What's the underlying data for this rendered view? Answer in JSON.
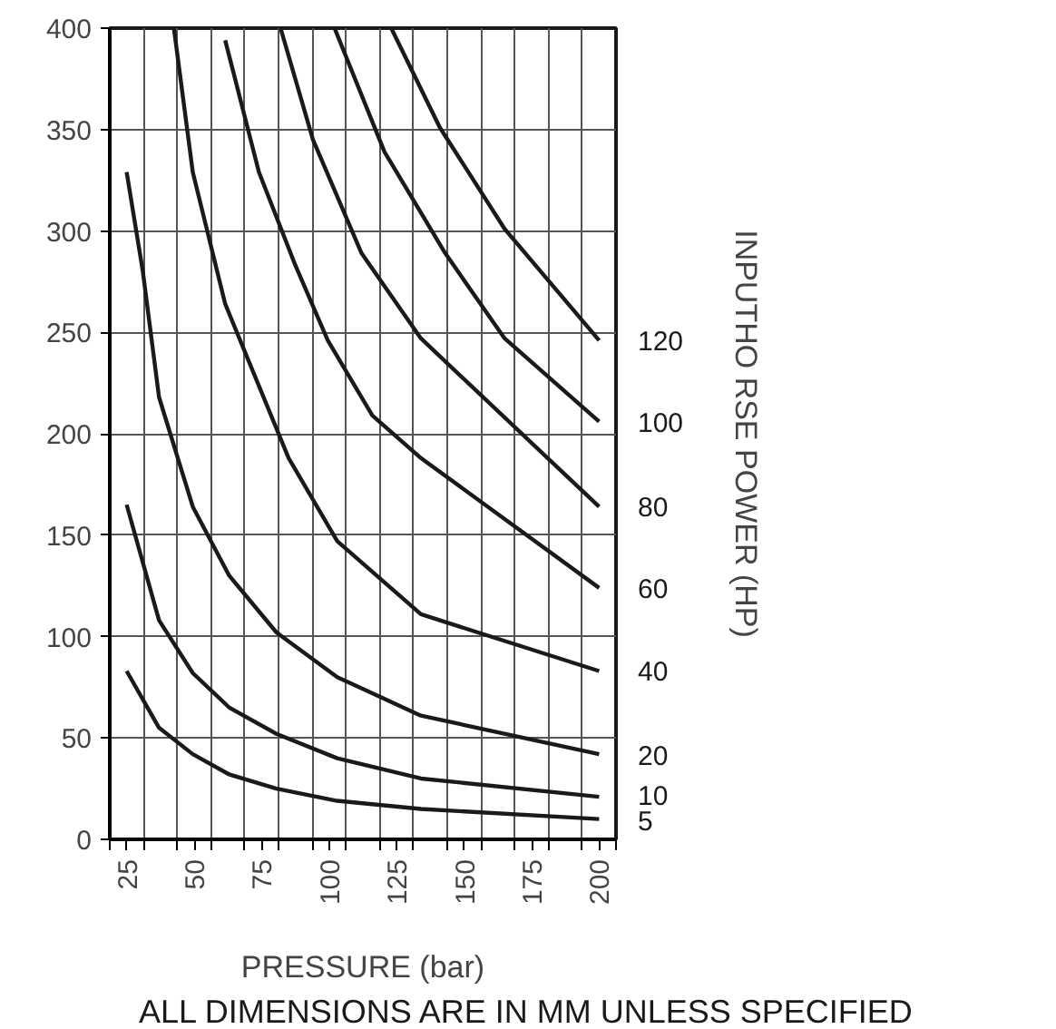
{
  "chart_data": {
    "type": "line",
    "xlabel": "PRESSURE (bar)",
    "y2label": "INPUTHO RSE POWER (HP)",
    "annotations": [
      "ALL DIMENSIONS ARE IN MM UNLESS SPECIFIED"
    ],
    "xlim": [
      18.75,
      206.25
    ],
    "ylim": [
      0,
      400
    ],
    "xticks": [
      25,
      50,
      75,
      100,
      125,
      150,
      175,
      200,
      {
        "value": 18.75,
        "label": null
      },
      {
        "value": 31.25,
        "label": null
      },
      {
        "value": 43.75,
        "label": null
      },
      {
        "value": 56.25,
        "label": null
      },
      {
        "value": 68.75,
        "label": null
      },
      {
        "value": 81.25,
        "label": null
      },
      {
        "value": 93.75,
        "label": null
      },
      {
        "value": 106.25,
        "label": null
      },
      {
        "value": 118.75,
        "label": null
      },
      {
        "value": 131.25,
        "label": null
      },
      {
        "value": 143.75,
        "label": null
      },
      {
        "value": 156.25,
        "label": null
      },
      {
        "value": 168.75,
        "label": null
      },
      {
        "value": 181.25,
        "label": null
      },
      {
        "value": 193.75,
        "label": null
      },
      {
        "value": 206.25,
        "label": null
      }
    ],
    "yticks": [
      0,
      50,
      100,
      150,
      200,
      250,
      300,
      350,
      400
    ],
    "grid": true,
    "marker": "none",
    "line_style": "solid",
    "series": [
      {
        "name": "5",
        "color": "#1a1a1a",
        "x": [
          25,
          37,
          49.5,
          63,
          80.5,
          103,
          134,
          200
        ],
        "values": [
          83,
          55,
          42,
          32,
          25,
          19,
          15,
          10
        ]
      },
      {
        "name": "10",
        "color": "#1a1a1a",
        "x": [
          25,
          37,
          49.5,
          63,
          80.5,
          103,
          134,
          200
        ],
        "values": [
          165,
          108,
          82,
          65,
          52,
          40,
          30,
          21
        ]
      },
      {
        "name": "20",
        "color": "#1a1a1a",
        "x": [
          25,
          31,
          37,
          49.5,
          63,
          80.5,
          103,
          134,
          200
        ],
        "values": [
          329,
          280,
          218,
          164,
          130,
          102,
          80,
          61,
          42
        ]
      },
      {
        "name": "40",
        "color": "#1a1a1a",
        "x": [
          42.5,
          49.5,
          61.5,
          85,
          103,
          134,
          200
        ],
        "values": [
          400,
          329,
          264,
          188,
          147,
          111,
          83
        ]
      },
      {
        "name": "60",
        "color": "#1a1a1a",
        "x": [
          61.5,
          74,
          87.5,
          99.5,
          116,
          134,
          200
        ],
        "values": [
          394,
          329,
          283,
          246,
          209,
          188,
          124
        ]
      },
      {
        "name": "80",
        "color": "#1a1a1a",
        "x": [
          82,
          94,
          112,
          134,
          200
        ],
        "values": [
          400,
          345,
          289,
          247,
          164
        ]
      },
      {
        "name": "100",
        "color": "#1a1a1a",
        "x": [
          102,
          120.5,
          143,
          165,
          200
        ],
        "values": [
          400,
          339,
          289,
          247,
          206
        ]
      },
      {
        "name": "120",
        "color": "#1a1a1a",
        "x": [
          123,
          141,
          165,
          200
        ],
        "values": [
          400,
          351,
          301,
          246
        ]
      }
    ]
  }
}
